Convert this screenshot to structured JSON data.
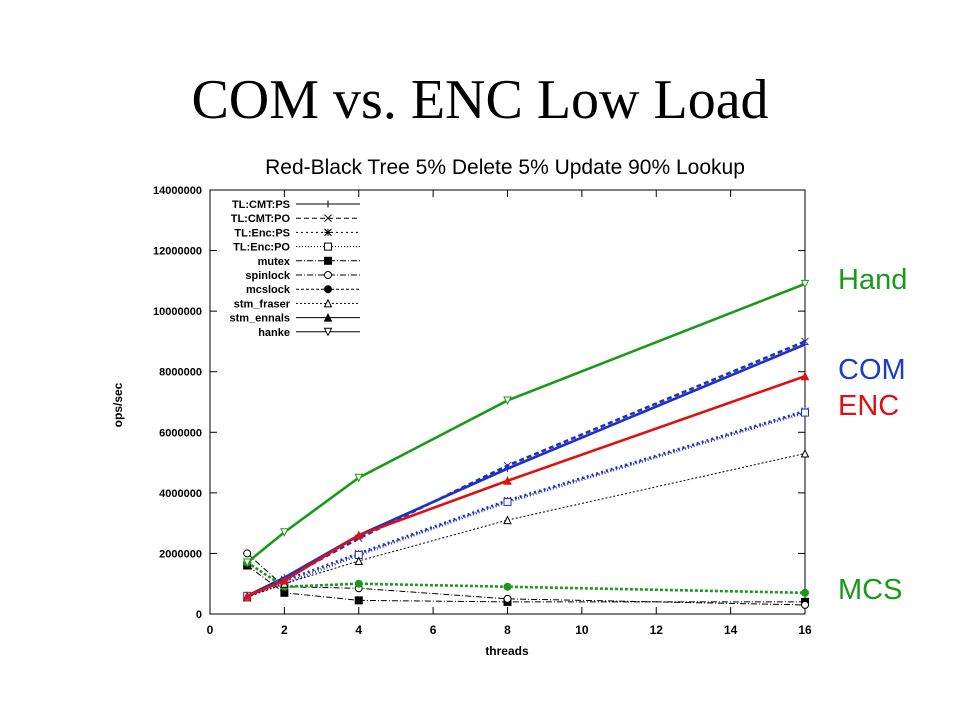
{
  "slide": {
    "title": "COM vs. ENC Low Load",
    "annotations": [
      {
        "label": "Hand",
        "color": "#1a9a1a"
      },
      {
        "label": "COM",
        "color": "#1a3ad0"
      },
      {
        "label": "ENC",
        "color": "#e01010"
      },
      {
        "label": "MCS",
        "color": "#1a9a1a"
      }
    ]
  },
  "chart_data": {
    "type": "line",
    "title": "Red-Black Tree 5% Delete 5% Update 90% Lookup",
    "xlabel": "threads",
    "ylabel": "ops/sec",
    "xlim": [
      0,
      16
    ],
    "ylim": [
      0,
      14000000
    ],
    "xticks": [
      0,
      2,
      4,
      6,
      8,
      10,
      12,
      14,
      16
    ],
    "yticks": [
      0,
      2000000,
      4000000,
      6000000,
      8000000,
      10000000,
      12000000,
      14000000
    ],
    "legend_position": "top-left",
    "grid": false,
    "x": [
      1,
      2,
      4,
      8,
      16
    ],
    "series": [
      {
        "name": "TL:CMT:PS",
        "values": [
          600000,
          1200000,
          2600000,
          4800000,
          8900000
        ],
        "color": "#2030c0",
        "marker": "plus",
        "dash": ""
      },
      {
        "name": "TL:CMT:PO",
        "values": [
          600000,
          1150000,
          2500000,
          4900000,
          9000000
        ],
        "color": "#2030c0",
        "marker": "cross",
        "dash": "5,3"
      },
      {
        "name": "TL:Enc:PS",
        "values": [
          600000,
          1100000,
          2000000,
          3750000,
          6700000
        ],
        "color": "#2030c0",
        "marker": "star",
        "dash": "2,3"
      },
      {
        "name": "TL:Enc:PO",
        "values": [
          600000,
          1000000,
          1950000,
          3700000,
          6650000
        ],
        "color": "#2030c0",
        "marker": "square-open",
        "dash": "1,2"
      },
      {
        "name": "mutex",
        "values": [
          1600000,
          700000,
          450000,
          400000,
          400000
        ],
        "color": "#000000",
        "marker": "square-filled",
        "dash": "6,2,1,2"
      },
      {
        "name": "spinlock",
        "values": [
          2000000,
          900000,
          850000,
          500000,
          300000
        ],
        "color": "#000000",
        "marker": "circle-open",
        "dash": "6,2,1,2"
      },
      {
        "name": "mcslock",
        "values": [
          1700000,
          900000,
          1000000,
          900000,
          700000
        ],
        "color": "#1a9a1a",
        "marker": "circle-filled",
        "dash": "3,2"
      },
      {
        "name": "stm_fraser",
        "values": [
          550000,
          1000000,
          1750000,
          3100000,
          5300000
        ],
        "color": "#000000",
        "marker": "triangle-open",
        "dash": "2,2"
      },
      {
        "name": "stm_ennals",
        "values": [
          600000,
          1100000,
          2600000,
          4400000,
          7850000
        ],
        "color": "#e01010",
        "marker": "triangle-filled",
        "dash": ""
      },
      {
        "name": "hanke",
        "values": [
          1700000,
          2700000,
          4500000,
          7050000,
          10900000
        ],
        "color": "#1a9a1a",
        "marker": "triangle-down-open",
        "dash": ""
      }
    ]
  }
}
